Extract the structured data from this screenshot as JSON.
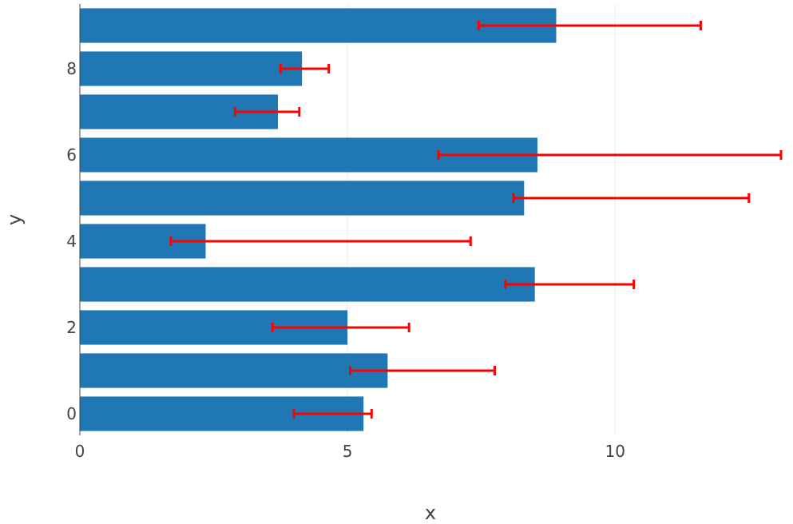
{
  "chart_data": {
    "type": "bar",
    "orientation": "horizontal",
    "title": "",
    "xlabel": "x",
    "ylabel": "y",
    "xlim": [
      0,
      13.1
    ],
    "ylim": [
      -0.5,
      9.5
    ],
    "x_ticks": [
      0,
      5,
      10
    ],
    "y_ticks": [
      0,
      2,
      4,
      6,
      8
    ],
    "grid": "vertical",
    "categories": [
      0,
      1,
      2,
      3,
      4,
      5,
      6,
      7,
      8,
      9
    ],
    "values": [
      5.3,
      5.75,
      5.0,
      8.5,
      2.35,
      8.3,
      8.55,
      3.7,
      4.15,
      8.9
    ],
    "error_intervals": [
      [
        4.0,
        5.45
      ],
      [
        5.05,
        7.75
      ],
      [
        3.6,
        6.15
      ],
      [
        7.95,
        10.35
      ],
      [
        1.7,
        7.3
      ],
      [
        8.1,
        12.5
      ],
      [
        6.7,
        13.1
      ],
      [
        2.9,
        4.1
      ],
      [
        3.75,
        4.65
      ],
      [
        7.45,
        11.6
      ]
    ],
    "colors": {
      "bar": "#1f77b4",
      "error": "#ff0000"
    }
  }
}
